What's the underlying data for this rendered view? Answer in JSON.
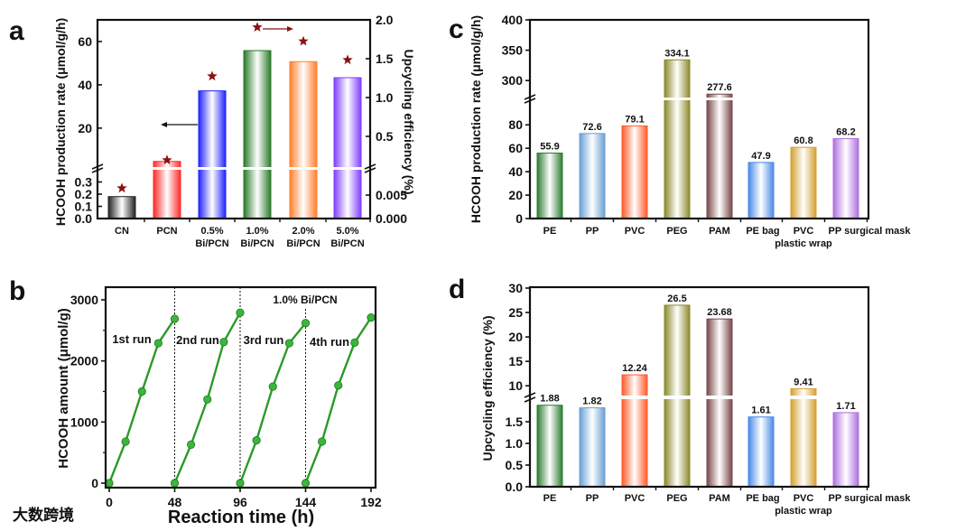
{
  "watermark": "大数跨境",
  "chart_data": [
    {
      "panel": "a",
      "type": "bar",
      "title": "",
      "categories": [
        [
          "CN"
        ],
        [
          "PCN"
        ],
        [
          "0.5%",
          "Bi/PCN"
        ],
        [
          "1.0%",
          "Bi/PCN"
        ],
        [
          "2.0%",
          "Bi/PCN"
        ],
        [
          "5.0%",
          "Bi/PCN"
        ]
      ],
      "series": [
        {
          "name": "HCOOH production rate",
          "axis": "left",
          "kind": "bar",
          "values": [
            0.18,
            4.6,
            37.2,
            55.8,
            50.7,
            43.3
          ]
        },
        {
          "name": "Upcycling efficiency",
          "axis": "right",
          "kind": "star",
          "values": [
            0.0059,
            0.16,
            1.24,
            1.87,
            1.69,
            1.45
          ]
        }
      ],
      "colors": [
        "#222222",
        "#ff2a2a",
        "#2222ff",
        "#2a7a2a",
        "#ff7f2a",
        "#7f3fff"
      ],
      "star_color": "#8b1010",
      "ylabel": "HCOOH production rate (μmol/g/h)",
      "ylabel_right": "Upcycling efficiency (%)",
      "ylim_broken": [
        [
          0,
          0.4
        ],
        [
          2,
          70
        ]
      ],
      "ylim_right_broken": [
        [
          0,
          0.0104
        ],
        [
          0.105,
          2.0
        ]
      ],
      "yticks": [
        "0.0",
        "0.1",
        "0.2",
        "0.3",
        "20",
        "40",
        "60"
      ],
      "yticks_right": [
        "0.000",
        "0.005",
        "0.5",
        "1.0",
        "1.5",
        "2.0"
      ]
    },
    {
      "panel": "b",
      "type": "line",
      "title": "",
      "annotation": "1.0% Bi/PCN",
      "xlabel": "Reaction time (h)",
      "ylabel": "HCOOH amount (μmol/g)",
      "xlim": [
        0,
        192
      ],
      "ylim": [
        0,
        3000
      ],
      "xticks": [
        "0",
        "48",
        "96",
        "144",
        "192"
      ],
      "yticks": [
        "0",
        "1000",
        "2000",
        "3000"
      ],
      "series": [
        {
          "name": "1st run",
          "x": [
            0,
            12,
            24,
            36,
            48
          ],
          "y": [
            0,
            680,
            1500,
            2290,
            2690
          ]
        },
        {
          "name": "2nd run",
          "x": [
            48,
            60,
            72,
            84,
            96
          ],
          "y": [
            0,
            630,
            1370,
            2310,
            2790
          ]
        },
        {
          "name": "3rd run",
          "x": [
            96,
            108,
            120,
            132,
            144
          ],
          "y": [
            0,
            700,
            1580,
            2290,
            2620
          ]
        },
        {
          "name": "4th run",
          "x": [
            144,
            156,
            168,
            180,
            192
          ],
          "y": [
            0,
            680,
            1600,
            2300,
            2710
          ]
        }
      ],
      "dividers": [
        48,
        96,
        144
      ],
      "line_color": "#2a9a2a",
      "label_color": "#8b1a1a"
    },
    {
      "panel": "c",
      "type": "bar",
      "title": "",
      "categories": [
        [
          "PE"
        ],
        [
          "PP"
        ],
        [
          "PVC"
        ],
        [
          "PEG"
        ],
        [
          "PAM"
        ],
        [
          "PE bag"
        ],
        [
          "PVC",
          "plastic wrap"
        ],
        [
          "PP surgical mask"
        ]
      ],
      "values": [
        55.9,
        72.6,
        79.1,
        334.1,
        277.6,
        47.9,
        60.8,
        68.2
      ],
      "value_labels": [
        "55.9",
        "72.6",
        "79.1",
        "334.1",
        "277.6",
        "47.9",
        "60.8",
        "68.2"
      ],
      "colors": [
        "#2e7d32",
        "#6a9fd4",
        "#ff5a2a",
        "#8a8a2a",
        "#7a4848",
        "#4a8ae8",
        "#d4a030",
        "#b070e0"
      ],
      "ylabel": "HCOOH production rate (μmol/g/h)",
      "ylim_broken": [
        [
          0,
          101
        ],
        [
          272,
          400
        ]
      ],
      "yticks": [
        "0",
        "20",
        "40",
        "60",
        "80",
        "300",
        "350",
        "400"
      ]
    },
    {
      "panel": "d",
      "type": "bar",
      "title": "",
      "categories": [
        [
          "PE"
        ],
        [
          "PP"
        ],
        [
          "PVC"
        ],
        [
          "PEG"
        ],
        [
          "PAM"
        ],
        [
          "PE bag"
        ],
        [
          "PVC",
          "plastic wrap"
        ],
        [
          "PP surgical mask"
        ]
      ],
      "values": [
        1.88,
        1.82,
        12.24,
        26.5,
        23.68,
        1.61,
        9.41,
        1.71
      ],
      "value_labels": [
        "1.88",
        "1.82",
        "12.24",
        "26.5",
        "23.68",
        "1.61",
        "9.41",
        "1.71"
      ],
      "colors": [
        "#2e7d32",
        "#6a9fd4",
        "#ff5a2a",
        "#8a8a2a",
        "#7a4848",
        "#4a8ae8",
        "#d4a030",
        "#b070e0"
      ],
      "ylabel": "Upcycling efficiency (%)",
      "ylim_broken": [
        [
          0,
          2.02
        ],
        [
          8,
          30
        ]
      ],
      "yticks": [
        "0.0",
        "0.5",
        "1.0",
        "1.5",
        "10",
        "15",
        "20",
        "25",
        "30"
      ]
    }
  ]
}
